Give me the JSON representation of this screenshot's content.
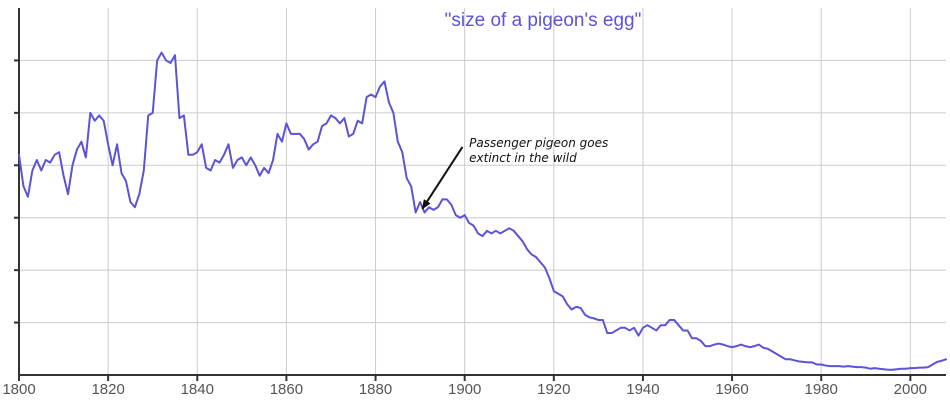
{
  "chart_data": {
    "type": "line",
    "title": "\"size of a pigeon's egg\"",
    "xlabel": "",
    "ylabel": "",
    "xlim": [
      1800,
      2008
    ],
    "ylim": [
      0,
      7
    ],
    "grid": true,
    "x_ticks": [
      1800,
      1820,
      1840,
      1860,
      1880,
      1900,
      1920,
      1940,
      1960,
      1980,
      2000
    ],
    "x_tick_labels": [
      "1800",
      "1820",
      "1840",
      "1860",
      "1880",
      "1900",
      "1920",
      "1940",
      "1960",
      "1980",
      "2000"
    ],
    "y_ticks": [
      1,
      2,
      3,
      4,
      5,
      6
    ],
    "show_y_labels": false,
    "colors": {
      "series": "#5b54d6",
      "title": "#5b54d6",
      "grid": "#cccccc",
      "axis": "#333333",
      "annotation": "#111111"
    },
    "annotation": {
      "lines": [
        "Passenger pigeon goes",
        "extinct in the wild"
      ],
      "text_x": 1901,
      "text_y": 4.35,
      "arrow_from_x": 1899.5,
      "arrow_from_y": 4.35,
      "arrow_to_x": 1890.5,
      "arrow_to_y": 3.17
    },
    "series": [
      {
        "name": "size of a pigeon's egg",
        "x": [
          1800,
          1801,
          1802,
          1803,
          1804,
          1805,
          1806,
          1807,
          1808,
          1809,
          1810,
          1811,
          1812,
          1813,
          1814,
          1815,
          1816,
          1817,
          1818,
          1819,
          1820,
          1821,
          1822,
          1823,
          1824,
          1825,
          1826,
          1827,
          1828,
          1829,
          1830,
          1831,
          1832,
          1833,
          1834,
          1835,
          1836,
          1837,
          1838,
          1839,
          1840,
          1841,
          1842,
          1843,
          1844,
          1845,
          1846,
          1847,
          1848,
          1849,
          1850,
          1851,
          1852,
          1853,
          1854,
          1855,
          1856,
          1857,
          1858,
          1859,
          1860,
          1861,
          1862,
          1863,
          1864,
          1865,
          1866,
          1867,
          1868,
          1869,
          1870,
          1871,
          1872,
          1873,
          1874,
          1875,
          1876,
          1877,
          1878,
          1879,
          1880,
          1881,
          1882,
          1883,
          1884,
          1885,
          1886,
          1887,
          1888,
          1889,
          1890,
          1891,
          1892,
          1893,
          1894,
          1895,
          1896,
          1897,
          1898,
          1899,
          1900,
          1901,
          1902,
          1903,
          1904,
          1905,
          1906,
          1907,
          1908,
          1909,
          1910,
          1911,
          1912,
          1913,
          1914,
          1915,
          1916,
          1917,
          1918,
          1919,
          1920,
          1921,
          1922,
          1923,
          1924,
          1925,
          1926,
          1927,
          1928,
          1929,
          1930,
          1931,
          1932,
          1933,
          1934,
          1935,
          1936,
          1937,
          1938,
          1939,
          1940,
          1941,
          1942,
          1943,
          1944,
          1945,
          1946,
          1947,
          1948,
          1949,
          1950,
          1951,
          1952,
          1953,
          1954,
          1955,
          1956,
          1957,
          1958,
          1959,
          1960,
          1961,
          1962,
          1963,
          1964,
          1965,
          1966,
          1967,
          1968,
          1969,
          1970,
          1971,
          1972,
          1973,
          1974,
          1975,
          1976,
          1977,
          1978,
          1979,
          1980,
          1981,
          1982,
          1983,
          1984,
          1985,
          1986,
          1987,
          1988,
          1989,
          1990,
          1991,
          1992,
          1993,
          1994,
          1995,
          1996,
          1997,
          1998,
          1999,
          2000,
          2001,
          2002,
          2003,
          2004,
          2005,
          2006,
          2007,
          2008
        ],
        "values": [
          4.2,
          3.6,
          3.4,
          3.9,
          4.1,
          3.9,
          4.1,
          4.05,
          4.2,
          4.25,
          3.8,
          3.45,
          4.0,
          4.3,
          4.45,
          4.15,
          5.0,
          4.85,
          4.95,
          4.85,
          4.4,
          4.0,
          4.4,
          3.85,
          3.7,
          3.3,
          3.2,
          3.45,
          3.9,
          4.95,
          5.0,
          6.0,
          6.15,
          6.0,
          5.95,
          6.1,
          4.9,
          4.95,
          4.2,
          4.2,
          4.25,
          4.4,
          3.95,
          3.9,
          4.1,
          4.05,
          4.2,
          4.4,
          3.95,
          4.1,
          4.15,
          4.0,
          4.15,
          4.0,
          3.8,
          3.95,
          3.85,
          4.1,
          4.6,
          4.45,
          4.8,
          4.6,
          4.6,
          4.6,
          4.5,
          4.3,
          4.4,
          4.45,
          4.75,
          4.8,
          4.95,
          4.9,
          4.8,
          4.9,
          4.55,
          4.6,
          4.85,
          4.8,
          5.3,
          5.35,
          5.3,
          5.5,
          5.6,
          5.2,
          5.0,
          4.45,
          4.25,
          3.75,
          3.6,
          3.1,
          3.3,
          3.1,
          3.2,
          3.15,
          3.2,
          3.35,
          3.35,
          3.25,
          3.05,
          3.0,
          3.05,
          2.9,
          2.85,
          2.7,
          2.65,
          2.75,
          2.7,
          2.75,
          2.7,
          2.75,
          2.8,
          2.75,
          2.65,
          2.55,
          2.4,
          2.3,
          2.25,
          2.15,
          2.05,
          1.85,
          1.6,
          1.55,
          1.5,
          1.35,
          1.25,
          1.3,
          1.28,
          1.15,
          1.1,
          1.08,
          1.05,
          1.05,
          0.8,
          0.8,
          0.85,
          0.9,
          0.9,
          0.85,
          0.9,
          0.75,
          0.9,
          0.95,
          0.9,
          0.85,
          0.95,
          0.95,
          1.05,
          1.05,
          0.95,
          0.85,
          0.85,
          0.7,
          0.7,
          0.65,
          0.55,
          0.55,
          0.58,
          0.6,
          0.58,
          0.55,
          0.53,
          0.55,
          0.58,
          0.55,
          0.53,
          0.55,
          0.58,
          0.52,
          0.5,
          0.45,
          0.4,
          0.35,
          0.3,
          0.3,
          0.28,
          0.26,
          0.25,
          0.24,
          0.24,
          0.2,
          0.2,
          0.18,
          0.17,
          0.17,
          0.17,
          0.16,
          0.17,
          0.16,
          0.15,
          0.15,
          0.14,
          0.12,
          0.13,
          0.12,
          0.11,
          0.1,
          0.1,
          0.11,
          0.12,
          0.12,
          0.13,
          0.13,
          0.14,
          0.14,
          0.15,
          0.2,
          0.25,
          0.27,
          0.3
        ]
      }
    ]
  }
}
